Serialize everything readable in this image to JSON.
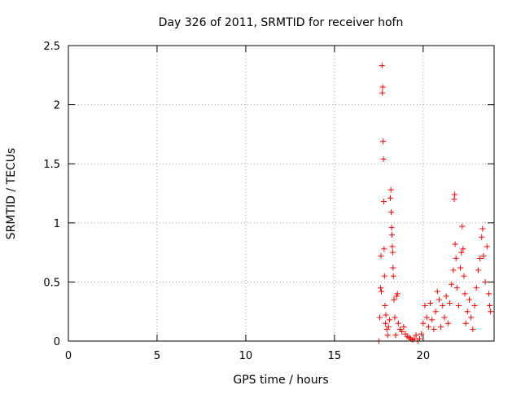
{
  "chart_data": {
    "type": "scatter",
    "title": "Day 326 of 2011, SRMTID for receiver hofn",
    "xlabel": "GPS time / hours",
    "ylabel": "SRMTID / TECUs",
    "xlim": [
      0,
      24
    ],
    "ylim": [
      0,
      2.5
    ],
    "grid": true,
    "marker": "plus",
    "color": "#ff0000",
    "xticks": [
      0,
      5,
      10,
      15,
      20
    ],
    "xtick_labels": [
      "0",
      "5",
      "10",
      "15",
      "20"
    ],
    "yticks": [
      0,
      0.5,
      1,
      1.5,
      2,
      2.5
    ],
    "ytick_labels": [
      "0",
      "0.5",
      "1",
      "1.5",
      "2",
      "2.5"
    ],
    "series": [
      {
        "name": "hofn",
        "points": [
          [
            17.5,
            0.0
          ],
          [
            17.55,
            0.2
          ],
          [
            17.6,
            0.45
          ],
          [
            17.62,
            0.72
          ],
          [
            17.65,
            0.42
          ],
          [
            17.68,
            2.33
          ],
          [
            17.7,
            2.1
          ],
          [
            17.72,
            2.15
          ],
          [
            17.74,
            1.69
          ],
          [
            17.76,
            1.54
          ],
          [
            17.78,
            1.18
          ],
          [
            17.8,
            0.78
          ],
          [
            17.82,
            0.55
          ],
          [
            17.85,
            0.3
          ],
          [
            17.88,
            0.15
          ],
          [
            17.9,
            0.22
          ],
          [
            17.95,
            0.1
          ],
          [
            18.0,
            0.05
          ],
          [
            18.05,
            0.12
          ],
          [
            18.1,
            0.18
          ],
          [
            18.15,
            1.21
          ],
          [
            18.18,
            1.28
          ],
          [
            18.2,
            1.09
          ],
          [
            18.22,
            0.96
          ],
          [
            18.24,
            0.9
          ],
          [
            18.26,
            0.8
          ],
          [
            18.28,
            0.75
          ],
          [
            18.3,
            0.62
          ],
          [
            18.32,
            0.55
          ],
          [
            18.35,
            0.35
          ],
          [
            18.4,
            0.2
          ],
          [
            18.45,
            0.05
          ],
          [
            18.5,
            0.38
          ],
          [
            18.55,
            0.4
          ],
          [
            18.6,
            0.15
          ],
          [
            18.7,
            0.1
          ],
          [
            18.8,
            0.08
          ],
          [
            18.9,
            0.12
          ],
          [
            19.0,
            0.06
          ],
          [
            19.1,
            0.04
          ],
          [
            19.2,
            0.03
          ],
          [
            19.3,
            0.02
          ],
          [
            19.4,
            0.01
          ],
          [
            19.5,
            0.02
          ],
          [
            19.6,
            0.05
          ],
          [
            19.7,
            0.0
          ],
          [
            19.8,
            0.02
          ],
          [
            19.9,
            0.06
          ],
          [
            20.0,
            0.15
          ],
          [
            20.1,
            0.3
          ],
          [
            20.2,
            0.2
          ],
          [
            20.3,
            0.12
          ],
          [
            20.4,
            0.32
          ],
          [
            20.5,
            0.18
          ],
          [
            20.6,
            0.1
          ],
          [
            20.7,
            0.25
          ],
          [
            20.8,
            0.42
          ],
          [
            20.9,
            0.35
          ],
          [
            21.0,
            0.12
          ],
          [
            21.1,
            0.3
          ],
          [
            21.2,
            0.2
          ],
          [
            21.3,
            0.38
          ],
          [
            21.4,
            0.15
          ],
          [
            21.5,
            0.32
          ],
          [
            21.6,
            0.48
          ],
          [
            21.7,
            0.6
          ],
          [
            21.75,
            1.2
          ],
          [
            21.78,
            1.24
          ],
          [
            21.8,
            0.82
          ],
          [
            21.85,
            0.7
          ],
          [
            21.9,
            0.45
          ],
          [
            22.0,
            0.3
          ],
          [
            22.1,
            0.62
          ],
          [
            22.15,
            0.75
          ],
          [
            22.2,
            0.97
          ],
          [
            22.25,
            0.78
          ],
          [
            22.3,
            0.55
          ],
          [
            22.35,
            0.4
          ],
          [
            22.4,
            0.15
          ],
          [
            22.5,
            0.25
          ],
          [
            22.6,
            0.35
          ],
          [
            22.7,
            0.2
          ],
          [
            22.8,
            0.1
          ],
          [
            22.9,
            0.3
          ],
          [
            23.0,
            0.45
          ],
          [
            23.1,
            0.6
          ],
          [
            23.2,
            0.7
          ],
          [
            23.3,
            0.88
          ],
          [
            23.35,
            0.95
          ],
          [
            23.4,
            0.72
          ],
          [
            23.5,
            0.5
          ],
          [
            23.6,
            0.8
          ],
          [
            23.7,
            0.4
          ],
          [
            23.75,
            0.3
          ],
          [
            23.8,
            0.25
          ]
        ]
      }
    ]
  }
}
